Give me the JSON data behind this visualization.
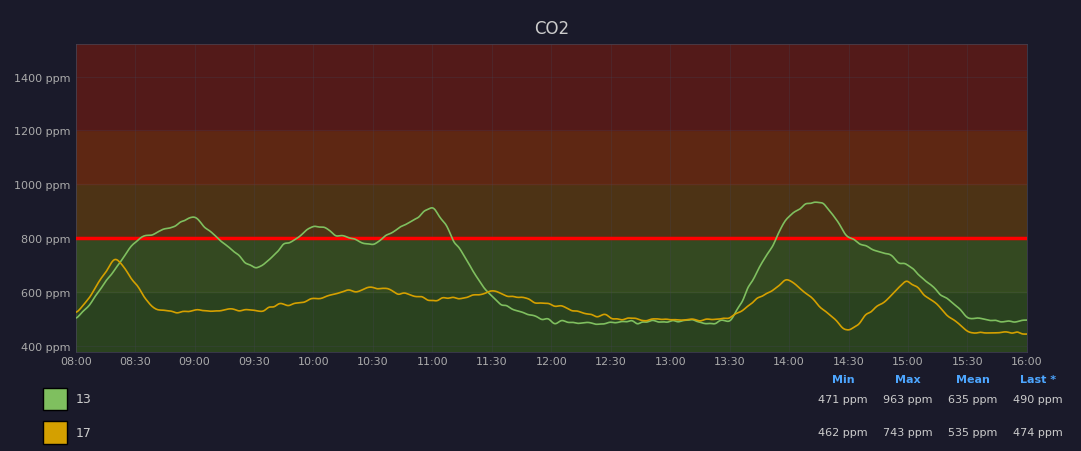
{
  "title": "CO2",
  "background_color": "#1a1a2e",
  "plot_bg_color": "#1a1a2e",
  "fig_bg_color": "#1f1f2e",
  "ylim": [
    380,
    1520
  ],
  "yticks": [
    400,
    600,
    800,
    1000,
    1200,
    1400
  ],
  "ytick_labels": [
    "400 ppm",
    "600 ppm",
    "800 ppm",
    "1000 ppm",
    "1200 ppm",
    "1400 ppm"
  ],
  "xlim_start": 0,
  "xlim_end": 480,
  "xtick_positions": [
    0,
    30,
    60,
    90,
    120,
    150,
    180,
    210,
    240,
    270,
    300,
    330,
    360,
    390,
    420,
    450,
    480
  ],
  "xtick_labels": [
    "08:00",
    "08:30",
    "09:00",
    "09:30",
    "10:00",
    "10:30",
    "11:00",
    "11:30",
    "12:00",
    "12:30",
    "13:00",
    "13:30",
    "14:00",
    "14:30",
    "15:00",
    "15:30",
    "16:00"
  ],
  "red_line_y": 800,
  "zone_colors": [
    {
      "ymin": 380,
      "ymax": 600,
      "color": "#2d4a1e",
      "alpha": 0.85
    },
    {
      "ymin": 600,
      "ymax": 800,
      "color": "#3d5a1e",
      "alpha": 0.75
    },
    {
      "ymin": 800,
      "ymax": 1000,
      "color": "#5a3a10",
      "alpha": 0.8
    },
    {
      "ymin": 1000,
      "ymax": 1200,
      "color": "#6b2a10",
      "alpha": 0.85
    },
    {
      "ymin": 1200,
      "ymax": 1520,
      "color": "#5a1a18",
      "alpha": 0.9
    }
  ],
  "grid_color": "#444455",
  "grid_alpha": 0.4,
  "line13_color": "#7fbf5f",
  "line17_color": "#d4a000",
  "legend_items": [
    {
      "label": "13",
      "color": "#7fbf5f"
    },
    {
      "label": "17",
      "color": "#d4a000"
    }
  ],
  "stats": {
    "13": {
      "min": "471 ppm",
      "max": "963 ppm",
      "mean": "635 ppm",
      "last": "490 ppm"
    },
    "17": {
      "min": "462 ppm",
      "max": "743 ppm",
      "mean": "535 ppm",
      "last": "474 ppm"
    }
  },
  "stats_header": [
    "Min",
    "Max",
    "Mean",
    "Last *"
  ],
  "title_color": "#cccccc",
  "tick_color": "#aaaaaa",
  "stats_color": "#cccccc",
  "stats_header_color": "#4da6ff"
}
